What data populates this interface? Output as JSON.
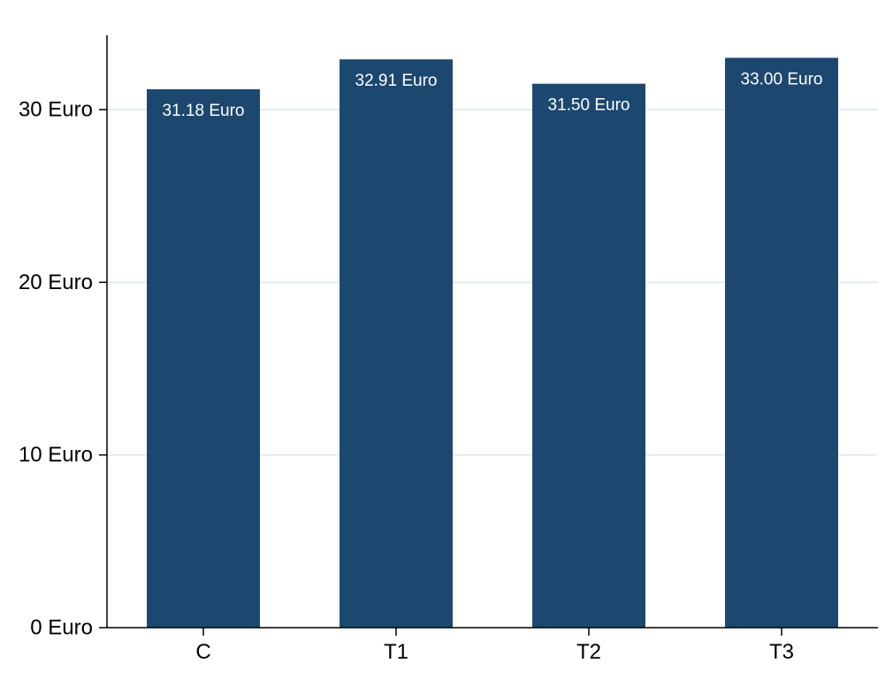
{
  "chart_data": {
    "type": "bar",
    "title": "",
    "xlabel": "",
    "ylabel": "",
    "categories": [
      "C",
      "T1",
      "T2",
      "T3"
    ],
    "values": [
      31.18,
      32.91,
      31.5,
      33.0
    ],
    "data_labels": [
      "31.18 Euro",
      "32.91 Euro",
      "31.50 Euro",
      "33.00 Euro"
    ],
    "ylim": [
      0,
      34.3
    ],
    "yticks": [
      0,
      10,
      20,
      30
    ],
    "ytick_labels": [
      "0 Euro",
      "10 Euro",
      "20 Euro",
      "30 Euro"
    ],
    "grid": "horizontal",
    "legend": "none",
    "colors": {
      "bar": "#1c4870",
      "grid": "#e3ecef",
      "axis": "#000000",
      "label": "#ffffff"
    }
  }
}
